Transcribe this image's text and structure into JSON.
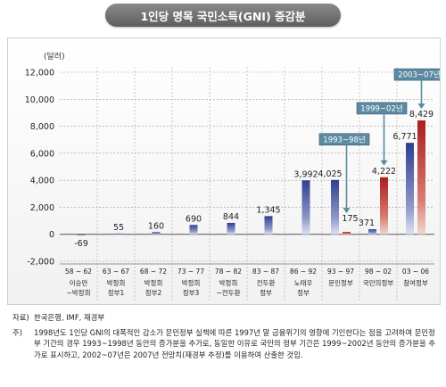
{
  "title": "1인당 명목 국민소득(GNI) 증감분",
  "chart_data": {
    "type": "bar",
    "title": "1인당 명목 국민소득(GNI) 증감분",
    "ylabel": "(달러)",
    "xlabel": "",
    "ylim": [
      -2000,
      12000
    ],
    "yticks": [
      12000,
      10000,
      8000,
      6000,
      4000,
      2000,
      0,
      -2000
    ],
    "ytick_labels": [
      "12,000",
      "10,000",
      "8,000",
      "6,000",
      "4,000",
      "2,000",
      "0",
      "-2,000"
    ],
    "grid": true,
    "categories": [
      {
        "period": "58 ~ 62",
        "label1": "이승만",
        "label2": "~박정희"
      },
      {
        "period": "63 ~ 67",
        "label1": "박정희",
        "label2": "정부1"
      },
      {
        "period": "68 ~ 72",
        "label1": "박정희",
        "label2": "정부2"
      },
      {
        "period": "73 ~ 77",
        "label1": "박정희",
        "label2": "정부3"
      },
      {
        "period": "78 ~ 82",
        "label1": "박정희",
        "label2": "~전두환"
      },
      {
        "period": "83 ~ 87",
        "label1": "전두환",
        "label2": "정부"
      },
      {
        "period": "86 ~ 92",
        "label1": "노태우",
        "label2": "정부"
      },
      {
        "period": "93 ~ 97",
        "label1": "문민정부",
        "label2": ""
      },
      {
        "period": "98 ~ 02",
        "label1": "국민의정부",
        "label2": ""
      },
      {
        "period": "03 ~ 06",
        "label1": "참여정부",
        "label2": ""
      }
    ],
    "bars": [
      {
        "cat": 0,
        "value": -69,
        "label": "-69",
        "style": "blue"
      },
      {
        "cat": 1,
        "value": 55,
        "label": "55",
        "style": "blue"
      },
      {
        "cat": 2,
        "value": 160,
        "label": "160",
        "style": "blue"
      },
      {
        "cat": 3,
        "value": 690,
        "label": "690",
        "style": "blue"
      },
      {
        "cat": 4,
        "value": 844,
        "label": "844",
        "style": "blue"
      },
      {
        "cat": 5,
        "value": 1345,
        "label": "1,345",
        "style": "blue"
      },
      {
        "cat": 6,
        "value": 3992,
        "label": "3,992",
        "style": "blue"
      },
      {
        "cat": 7,
        "value": 4025,
        "label": "4,025",
        "style": "blue"
      },
      {
        "cat": 7,
        "value": 175,
        "label": "175",
        "style": "red"
      },
      {
        "cat": 8,
        "value": 371,
        "label": "371",
        "style": "blue"
      },
      {
        "cat": 8,
        "value": 4222,
        "label": "4,222",
        "style": "red"
      },
      {
        "cat": 9,
        "value": 6771,
        "label": "6,771",
        "style": "blue"
      },
      {
        "cat": 9,
        "value": 8429,
        "label": "8,429",
        "style": "red"
      }
    ],
    "callouts": [
      {
        "text": "1993~98년",
        "cat": 7,
        "level": 6600
      },
      {
        "text": "1999~02년",
        "cat": 8,
        "level": 8900
      },
      {
        "text": "2003~07년",
        "cat": 9,
        "level": 11400
      }
    ]
  },
  "source": {
    "key": "자료)",
    "text": "한국은행, IMF, 재경부"
  },
  "note": {
    "key": "주)",
    "text": "1998년도 1인당 GNI의 대폭적인 감소가 문민정부 실책에 따른 1997년 말 금융위기의 영향에 기인한다는 점을 고려하여 문민정부 기간의 경우 1993~1998년 동안의 증가분을 추가로, 동일한 이유로 국민의 정부 기간은 1999~2002년 동안의 증가분을 추가로 표시하고, 2002~07년은 2007년 전망치(재경부 추정)를 이용하여 산출한 것임."
  }
}
